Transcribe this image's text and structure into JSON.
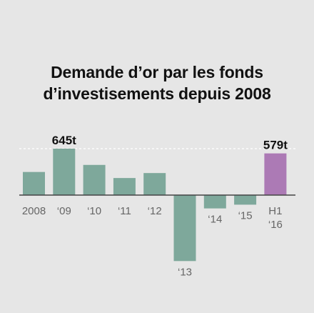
{
  "chart_data": {
    "type": "bar",
    "title_lines": [
      "Demande d’or par les fonds",
      "d’investisements depuis 2008"
    ],
    "categories": [
      "2008",
      "‘09",
      "‘10",
      "‘11",
      "‘12",
      "‘13",
      "‘14",
      "‘15",
      "H1 ‘16"
    ],
    "category_lines": [
      [
        "2008"
      ],
      [
        "‘09"
      ],
      [
        "‘10"
      ],
      [
        "‘11"
      ],
      [
        "‘12"
      ],
      [
        "‘13"
      ],
      [
        "‘14"
      ],
      [
        "‘15"
      ],
      [
        "H1",
        "‘16"
      ]
    ],
    "values": [
      321,
      645,
      419,
      237,
      306,
      -916,
      -185,
      -133,
      579
    ],
    "data_labels": {
      "1": "645t",
      "8": "579t"
    },
    "reference_line": 645,
    "ylim": [
      -916,
      645
    ],
    "colors": {
      "bar": "#7ea89b",
      "highlight": "#ac7ab5",
      "axis": "#444444",
      "label": "#666666",
      "title": "#111111"
    },
    "highlight_index": 8,
    "grid": false
  }
}
